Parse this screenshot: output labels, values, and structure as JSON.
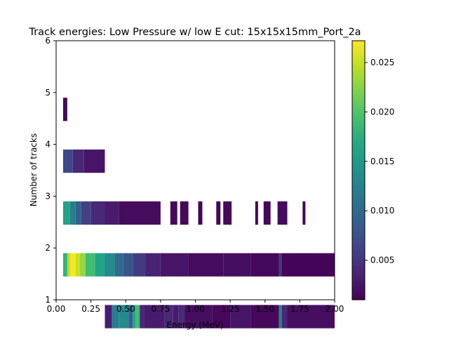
{
  "chart_data": {
    "type": "heatmap",
    "title": "Track energies: Low Pressure w/ low E cut: 15x15x15mm_Port_2a",
    "xlabel": "Energy (MeV)",
    "ylabel": "Number of tracks",
    "xlim": [
      0,
      2
    ],
    "ylim": [
      1,
      6
    ],
    "x_ticks": [
      "0.00",
      "0.25",
      "0.50",
      "0.75",
      "1.00",
      "1.25",
      "1.50",
      "1.75",
      "2.00"
    ],
    "y_ticks": [
      "1",
      "2",
      "3",
      "4",
      "5",
      "6"
    ],
    "colorbar": {
      "colormap": "viridis",
      "range": [
        0.001,
        0.0272
      ],
      "ticks": [
        "0.005",
        "0.010",
        "0.015",
        "0.020",
        "0.025"
      ]
    },
    "grid": false,
    "rows": [
      {
        "tracks": 1,
        "segments": [
          [
            0.35,
            0.4,
            0.003
          ],
          [
            0.4,
            0.45,
            0.012
          ],
          [
            0.45,
            0.52,
            0.0135
          ],
          [
            0.52,
            0.55,
            0.009
          ],
          [
            0.55,
            0.57,
            0.016
          ],
          [
            0.57,
            0.6,
            0.019
          ],
          [
            0.6,
            0.63,
            0.004
          ],
          [
            0.63,
            0.78,
            0.003
          ],
          [
            0.78,
            0.84,
            0.004
          ],
          [
            0.84,
            0.88,
            0.003
          ],
          [
            0.88,
            0.92,
            0.004
          ],
          [
            0.92,
            1.12,
            0.002
          ],
          [
            1.12,
            1.25,
            0.0015
          ],
          [
            1.25,
            1.4,
            0.0025
          ],
          [
            1.4,
            1.6,
            0.0015
          ],
          [
            1.6,
            1.62,
            0.0125
          ],
          [
            1.62,
            1.66,
            0.004
          ],
          [
            1.66,
            2.0,
            0.002
          ]
        ]
      },
      {
        "tracks": 2,
        "segments": [
          [
            0.05,
            0.08,
            0.018
          ],
          [
            0.08,
            0.1,
            0.024
          ],
          [
            0.1,
            0.14,
            0.027
          ],
          [
            0.14,
            0.17,
            0.025
          ],
          [
            0.17,
            0.21,
            0.023
          ],
          [
            0.21,
            0.28,
            0.019
          ],
          [
            0.28,
            0.35,
            0.016
          ],
          [
            0.35,
            0.42,
            0.0135
          ],
          [
            0.42,
            0.48,
            0.01
          ],
          [
            0.48,
            0.55,
            0.008
          ],
          [
            0.55,
            0.64,
            0.0055
          ],
          [
            0.64,
            0.75,
            0.0035
          ],
          [
            0.75,
            0.95,
            0.0025
          ],
          [
            0.95,
            1.2,
            0.0018
          ],
          [
            1.2,
            1.4,
            0.002
          ],
          [
            1.4,
            1.6,
            0.0015
          ],
          [
            1.6,
            1.62,
            0.005
          ],
          [
            1.62,
            2.0,
            0.0012
          ]
        ]
      },
      {
        "tracks": 3,
        "segments": [
          [
            0.05,
            0.1,
            0.016
          ],
          [
            0.1,
            0.14,
            0.012
          ],
          [
            0.14,
            0.18,
            0.009
          ],
          [
            0.18,
            0.25,
            0.006
          ],
          [
            0.25,
            0.35,
            0.004
          ],
          [
            0.35,
            0.45,
            0.003
          ],
          [
            0.45,
            0.75,
            0.0018
          ],
          [
            0.82,
            0.87,
            0.0015
          ],
          [
            0.89,
            0.95,
            0.0015
          ],
          [
            1.02,
            1.05,
            0.0012
          ],
          [
            1.15,
            1.18,
            0.0012
          ],
          [
            1.2,
            1.26,
            0.0015
          ],
          [
            1.43,
            1.45,
            0.001
          ],
          [
            1.49,
            1.54,
            0.0015
          ],
          [
            1.59,
            1.66,
            0.0018
          ],
          [
            1.77,
            1.79,
            0.001
          ]
        ]
      },
      {
        "tracks": 4,
        "segments": [
          [
            0.05,
            0.12,
            0.0065
          ],
          [
            0.12,
            0.2,
            0.004
          ],
          [
            0.2,
            0.35,
            0.0025
          ]
        ]
      },
      {
        "tracks": 5,
        "segments": [
          [
            0.05,
            0.08,
            0.0015
          ]
        ]
      }
    ]
  }
}
